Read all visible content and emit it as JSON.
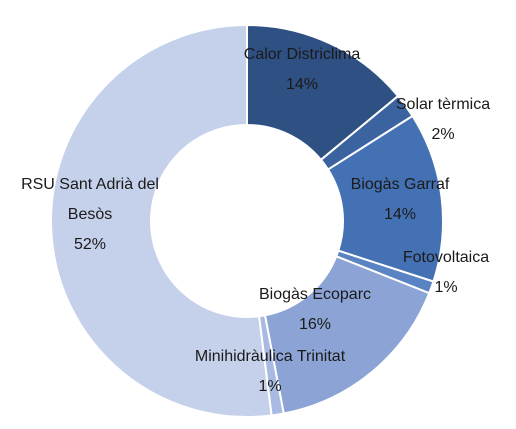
{
  "chart_data": {
    "type": "donut",
    "categories": [
      "Calor Districlima",
      "Solar tèrmica",
      "Biogàs Garraf",
      "Fotovoltaica",
      "Biogàs Ecoparc",
      "Minihidràulica Trinitat",
      "RSU Sant Adrià del Besòs"
    ],
    "values": [
      14,
      2,
      14,
      1,
      16,
      1,
      52
    ],
    "value_labels": [
      "14%",
      "2%",
      "14%",
      "1%",
      "16%",
      "1%",
      "52%"
    ],
    "colors": [
      "#2f5083",
      "#3a63a0",
      "#4471b3",
      "#5a83c3",
      "#8ba3d5",
      "#a9bae2",
      "#c5d1eb"
    ]
  }
}
